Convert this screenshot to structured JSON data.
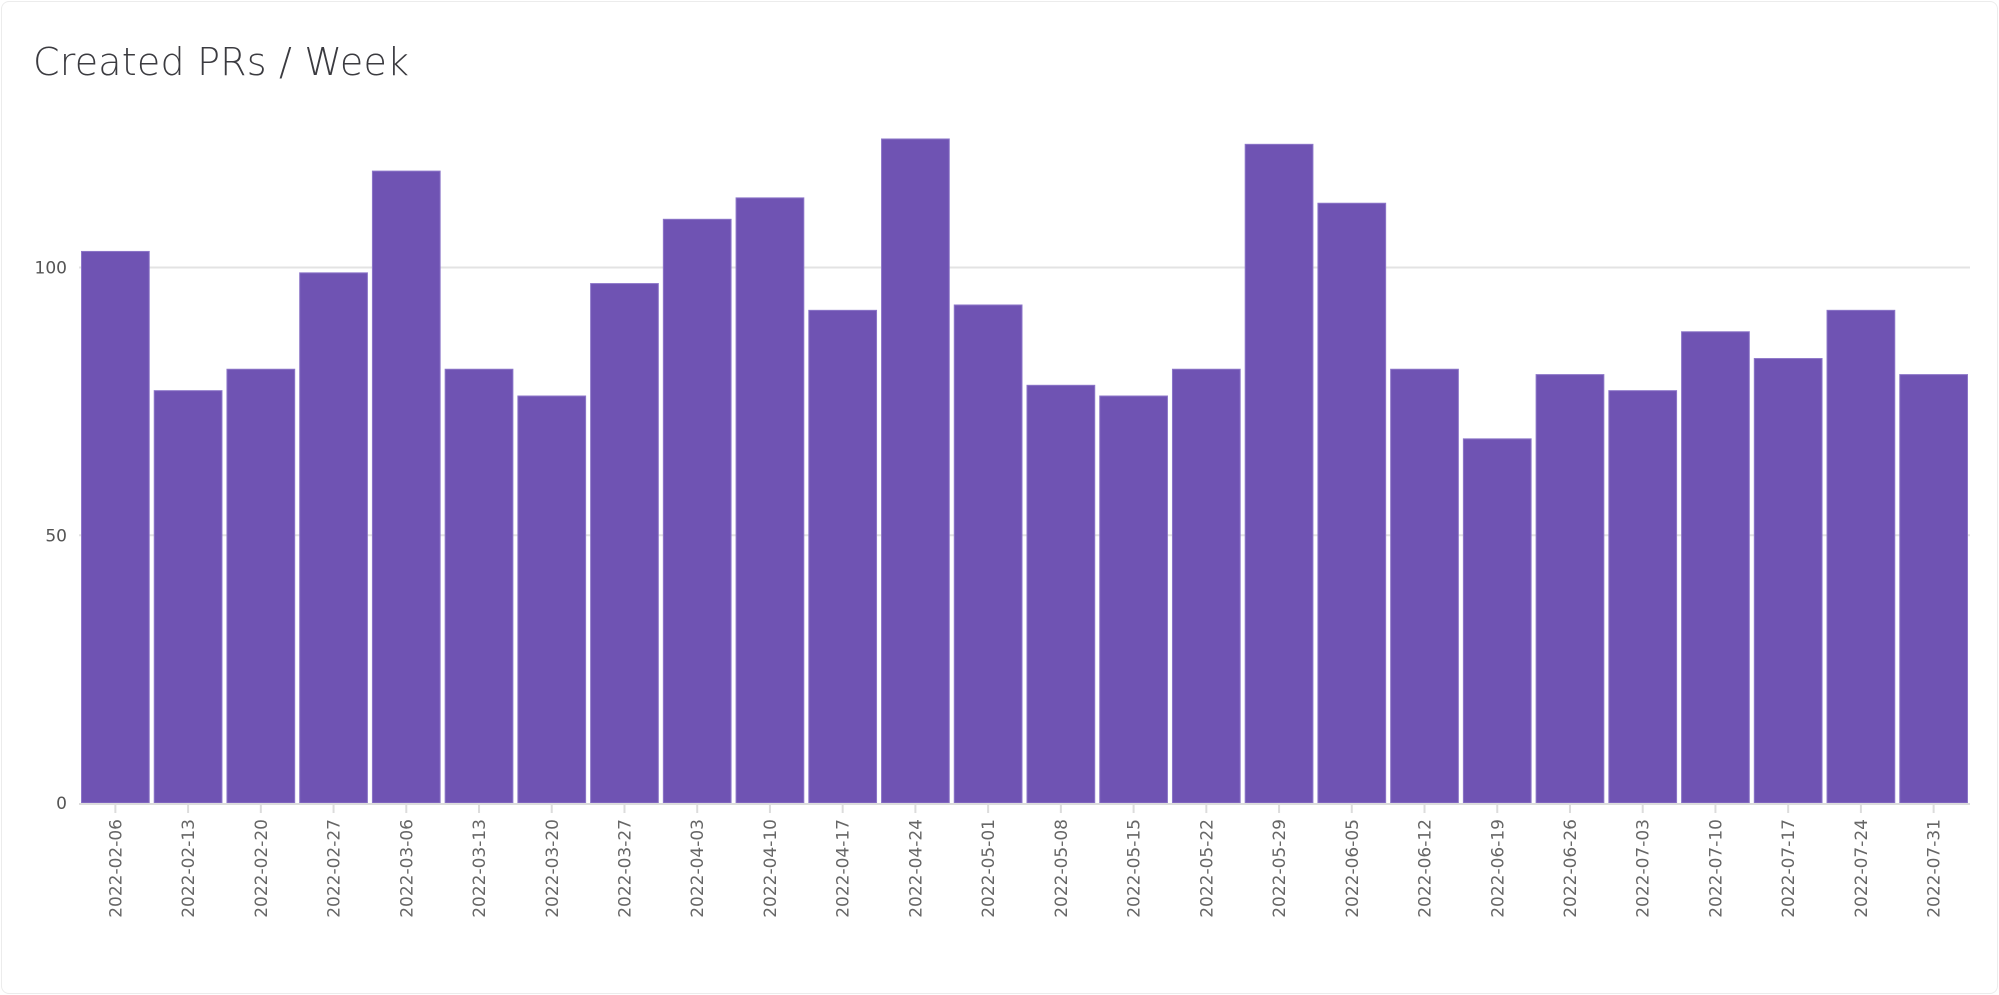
{
  "chart_data": {
    "type": "bar",
    "title": "Created PRs / Week",
    "xlabel": "",
    "ylabel": "",
    "ylim": [
      0,
      127
    ],
    "yticks": [
      0,
      50,
      100
    ],
    "grid": true,
    "color": "#6f53b3",
    "categories": [
      "2022-02-06",
      "2022-02-13",
      "2022-02-20",
      "2022-02-27",
      "2022-03-06",
      "2022-03-13",
      "2022-03-20",
      "2022-03-27",
      "2022-04-03",
      "2022-04-10",
      "2022-04-17",
      "2022-04-24",
      "2022-05-01",
      "2022-05-08",
      "2022-05-15",
      "2022-05-22",
      "2022-05-29",
      "2022-06-05",
      "2022-06-12",
      "2022-06-19",
      "2022-06-26",
      "2022-07-03",
      "2022-07-10",
      "2022-07-17",
      "2022-07-24",
      "2022-07-31"
    ],
    "values": [
      103,
      77,
      81,
      99,
      118,
      81,
      76,
      97,
      109,
      113,
      92,
      124,
      93,
      78,
      76,
      81,
      123,
      112,
      81,
      68,
      80,
      77,
      88,
      83,
      92,
      80
    ]
  }
}
